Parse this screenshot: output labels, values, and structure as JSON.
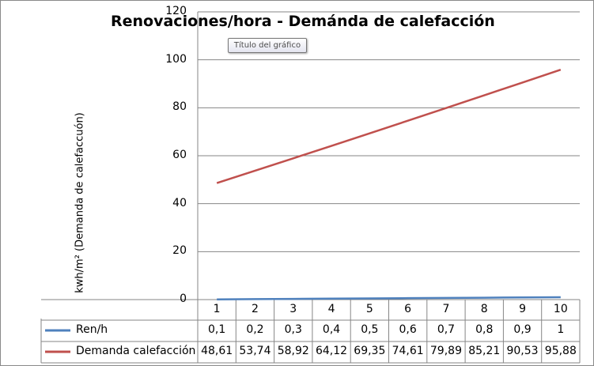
{
  "chart_data": {
    "type": "line",
    "title": "Renovaciones/hora - Demánda de calefacción",
    "ylabel": "kwh/m² (Demanda de calefaccuón)",
    "xlabel": "",
    "ylim": [
      0,
      120
    ],
    "yticks": [
      "0",
      "20",
      "40",
      "60",
      "80",
      "100",
      "120"
    ],
    "categories": [
      "1",
      "2",
      "3",
      "4",
      "5",
      "6",
      "7",
      "8",
      "9",
      "10"
    ],
    "legend": "data-table",
    "grid": true,
    "series": [
      {
        "name": "Ren/h",
        "color": "#4f81bd",
        "values": [
          0.1,
          0.2,
          0.3,
          0.4,
          0.5,
          0.6,
          0.7,
          0.8,
          0.9,
          1
        ],
        "labels": [
          "0,1",
          "0,2",
          "0,3",
          "0,4",
          "0,5",
          "0,6",
          "0,7",
          "0,8",
          "0,9",
          "1"
        ]
      },
      {
        "name": "Demanda calefacción",
        "color": "#c0504d",
        "values": [
          48.61,
          53.74,
          58.92,
          64.12,
          69.35,
          74.61,
          79.89,
          85.21,
          90.53,
          95.88
        ],
        "labels": [
          "48,61",
          "53,74",
          "58,92",
          "64,12",
          "69,35",
          "74,61",
          "79,89",
          "85,21",
          "90,53",
          "95,88"
        ]
      }
    ]
  },
  "tooltip": "Título del gráfico"
}
